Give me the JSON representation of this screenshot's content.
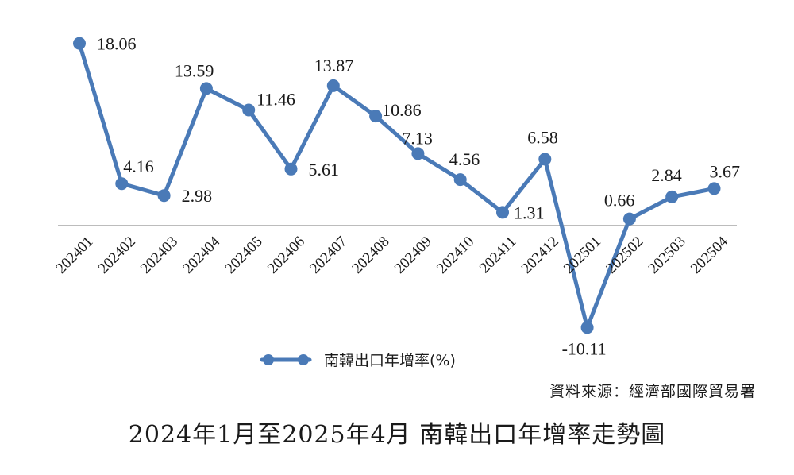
{
  "chart_data": {
    "type": "line",
    "categories": [
      "202401",
      "202402",
      "202403",
      "202404",
      "202405",
      "202406",
      "202407",
      "202408",
      "202409",
      "202410",
      "202411",
      "202412",
      "202501",
      "202502",
      "202503",
      "202504"
    ],
    "series": [
      {
        "name": "南韓出口年增率(%)",
        "values": [
          18.06,
          4.16,
          2.98,
          13.59,
          11.46,
          5.61,
          13.87,
          10.86,
          7.13,
          4.56,
          1.31,
          6.58,
          -10.11,
          0.66,
          2.84,
          3.67
        ],
        "color": "#4a7ab7"
      }
    ],
    "data_labels": [
      "18.06",
      "4.16",
      "2.98",
      "13.59",
      "11.46",
      "5.61",
      "13.87",
      "10.86",
      "7.13",
      "4.56",
      "1.31",
      "6.58",
      "-10.11",
      "0.66",
      "2.84",
      "3.67"
    ],
    "legend_position": "bottom",
    "grid": false,
    "axis_color": "#a6a6a6"
  },
  "source": "資料來源：經濟部國際貿易署",
  "caption": "2024年1月至2025年4月  南韓出口年增率走勢圖"
}
